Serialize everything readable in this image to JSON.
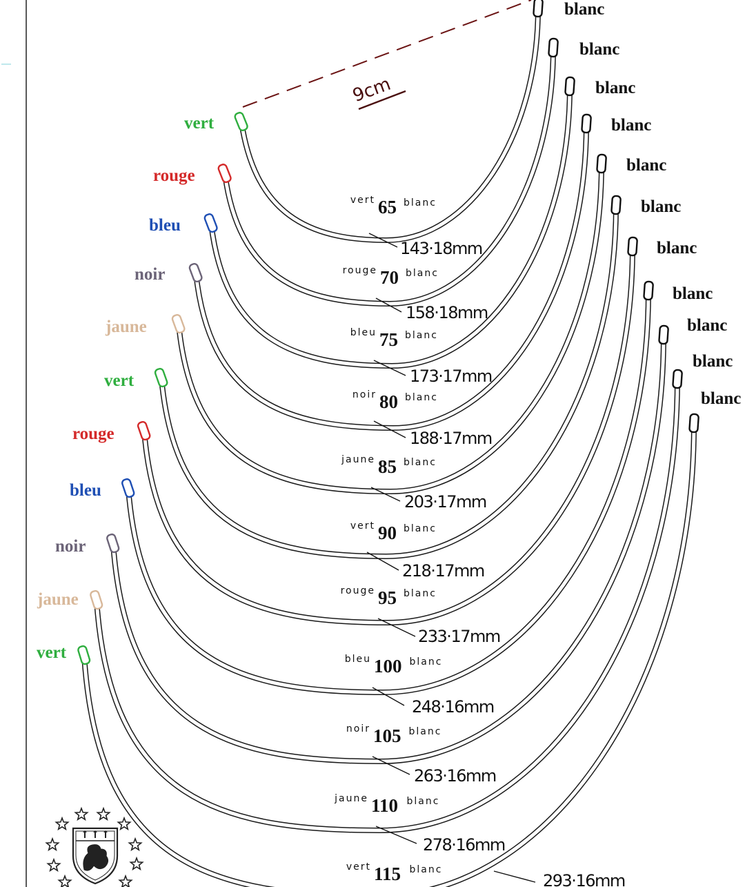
{
  "measure": {
    "label": "9cm"
  },
  "wires": [
    {
      "size": "65",
      "left_color": "vert",
      "right_color": "blanc",
      "length": "143·18mm",
      "left_hex": "#2fae3f"
    },
    {
      "size": "70",
      "left_color": "rouge",
      "right_color": "blanc",
      "length": "158·18mm",
      "left_hex": "#d42a2a"
    },
    {
      "size": "75",
      "left_color": "bleu",
      "right_color": "blanc",
      "length": "173·17mm",
      "left_hex": "#1f4fb4"
    },
    {
      "size": "80",
      "left_color": "noir",
      "right_color": "blanc",
      "length": "188·17mm",
      "left_hex": "#6c6478"
    },
    {
      "size": "85",
      "left_color": "jaune",
      "right_color": "blanc",
      "length": "203·17mm",
      "left_hex": "#d8b89a"
    },
    {
      "size": "90",
      "left_color": "vert",
      "right_color": "blanc",
      "length": "218·17mm",
      "left_hex": "#2fae3f"
    },
    {
      "size": "95",
      "left_color": "rouge",
      "right_color": "blanc",
      "length": "233·17mm",
      "left_hex": "#d42a2a"
    },
    {
      "size": "100",
      "left_color": "bleu",
      "right_color": "blanc",
      "length": "248·16mm",
      "left_hex": "#1f4fb4"
    },
    {
      "size": "105",
      "left_color": "noir",
      "right_color": "blanc",
      "length": "263·16mm",
      "left_hex": "#6c6478"
    },
    {
      "size": "110",
      "left_color": "jaune",
      "right_color": "blanc",
      "length": "278·16mm",
      "left_hex": "#d8b89a"
    },
    {
      "size": "115",
      "left_color": "vert",
      "right_color": "blanc",
      "length": "293·16mm",
      "left_hex": "#2fae3f"
    }
  ],
  "colors": {
    "ink": "#1a1a1a",
    "tip_right": "#111111",
    "dash": "#6b1414",
    "measure_label": "#4a0f0f"
  },
  "logo": {
    "icon": "lion-crest-with-stars-icon"
  }
}
